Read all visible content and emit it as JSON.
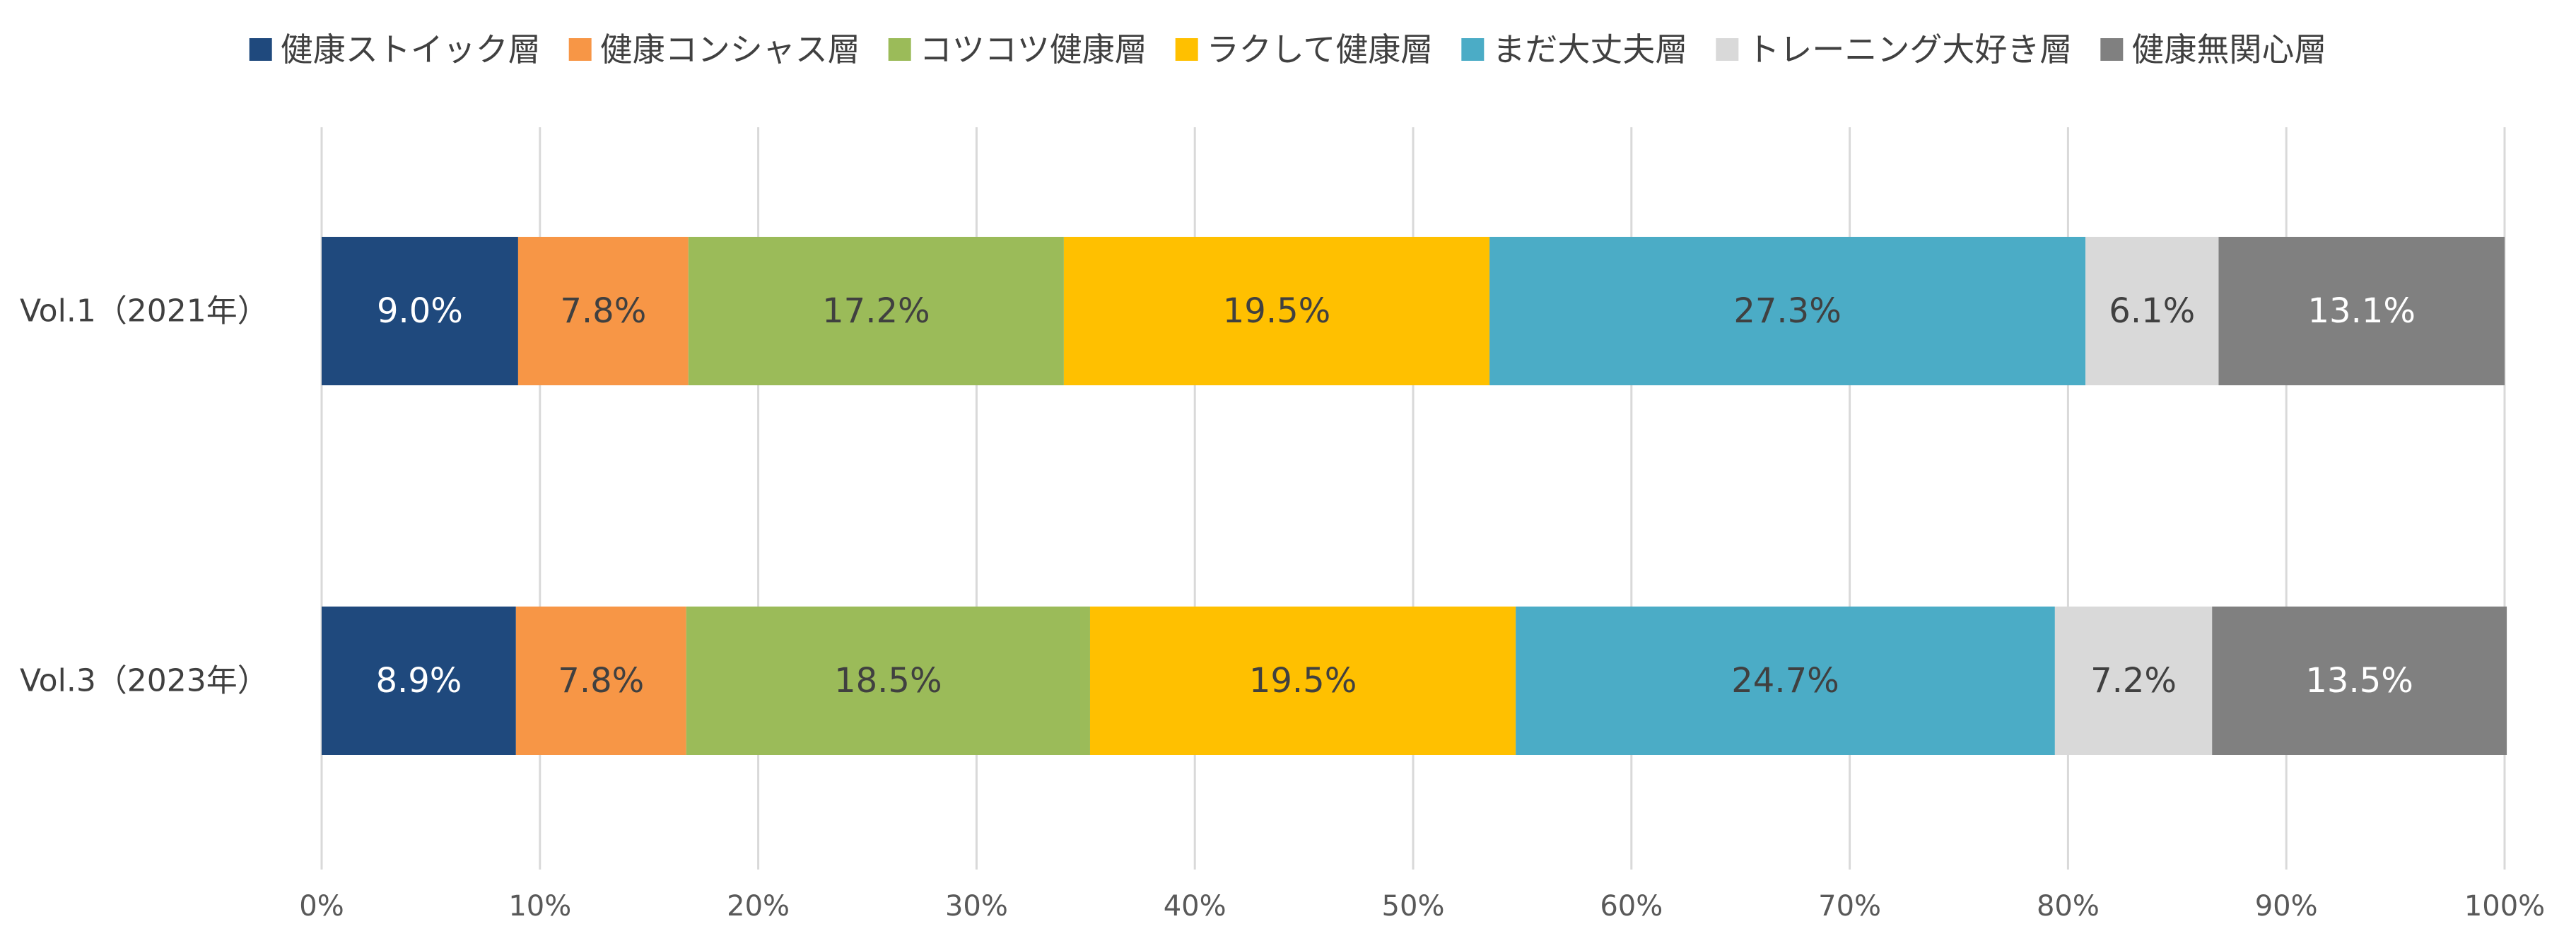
{
  "chart_data": {
    "type": "bar",
    "orientation": "horizontal",
    "stacked": "percent",
    "categories": [
      "Vol.1（2021年）",
      "Vol.3（2023年）"
    ],
    "series": [
      {
        "name": "健康ストイック層",
        "values": [
          9.0,
          8.9
        ],
        "labels": [
          "9.0%",
          "8.9%"
        ],
        "color": "#1f497d",
        "label_color": "#ffffff"
      },
      {
        "name": "健康コンシャス層",
        "values": [
          7.8,
          7.8
        ],
        "labels": [
          "7.8%",
          "7.8%"
        ],
        "color": "#f79646",
        "label_color": "#404040"
      },
      {
        "name": "コツコツ健康層",
        "values": [
          17.2,
          18.5
        ],
        "labels": [
          "17.2%",
          "18.5%"
        ],
        "color": "#9bbb59",
        "label_color": "#404040"
      },
      {
        "name": "ラクして健康層",
        "values": [
          19.5,
          19.5
        ],
        "labels": [
          "19.5%",
          "19.5%"
        ],
        "color": "#ffc000",
        "label_color": "#404040"
      },
      {
        "name": "まだ大丈夫層",
        "values": [
          27.3,
          24.7
        ],
        "labels": [
          "27.3%",
          "24.7%"
        ],
        "color": "#4bacc6",
        "label_color": "#404040"
      },
      {
        "name": "トレーニング大好き層",
        "values": [
          6.1,
          7.2
        ],
        "labels": [
          "6.1%",
          "7.2%"
        ],
        "color": "#d9d9d9",
        "label_color": "#404040"
      },
      {
        "name": "健康無関心層",
        "values": [
          13.1,
          13.5
        ],
        "labels": [
          "13.1%",
          "13.5%"
        ],
        "color": "#808080",
        "label_color": "#ffffff"
      }
    ],
    "xlim": [
      0,
      100
    ],
    "x_ticks": [
      0,
      10,
      20,
      30,
      40,
      50,
      60,
      70,
      80,
      90,
      100
    ],
    "x_tick_labels": [
      "0%",
      "10%",
      "20%",
      "30%",
      "40%",
      "50%",
      "60%",
      "70%",
      "80%",
      "90%",
      "100%"
    ],
    "grid": true,
    "legend_position": "top"
  }
}
